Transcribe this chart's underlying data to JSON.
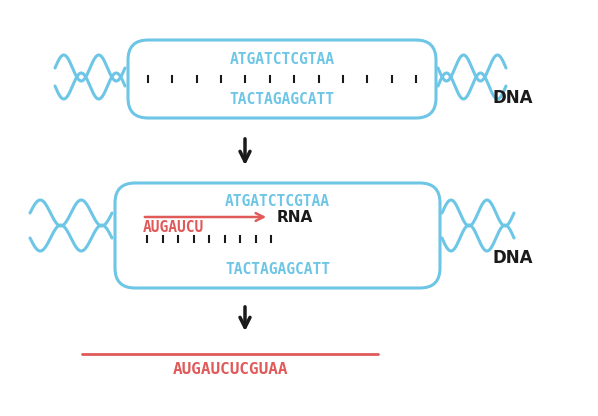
{
  "bg_color": "#ffffff",
  "dna_color": "#6ec6e6",
  "rna_color": "#e05a5a",
  "black_color": "#1a1a1a",
  "dna_strand1_top": "ATGATCTCGTAA",
  "dna_strand1_bottom": "TACTAGAGCATT",
  "dna_strand2_top": "ATGATCTCGTAA",
  "dna_strand2_bottom": "TACTAGAGCATT",
  "rna_partial": "AUGAUCU",
  "rna_full": "AUGAUCUCGUAA",
  "label_dna": "DNA",
  "label_rna": "RNA"
}
